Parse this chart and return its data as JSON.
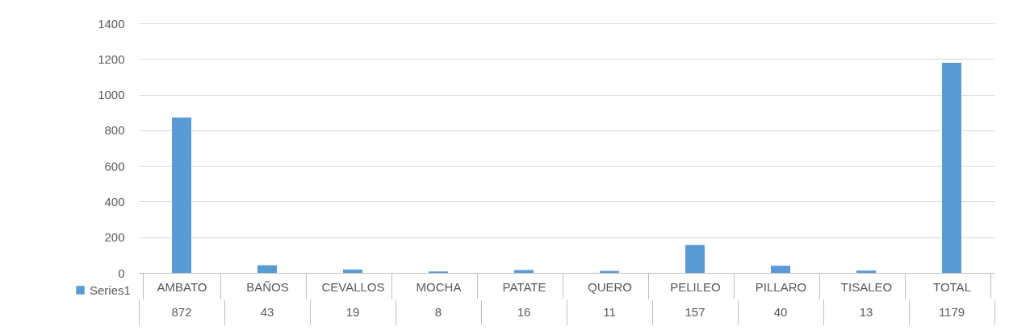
{
  "chart_data": {
    "type": "bar",
    "categories": [
      "AMBATO",
      "BAÑOS",
      "CEVALLOS",
      "MOCHA",
      "PATATE",
      "QUERO",
      "PELILEO",
      "PILLARO",
      "TISALEO",
      "TOTAL"
    ],
    "series": [
      {
        "name": "Series1",
        "color": "#5b9bd5",
        "values": [
          872,
          43,
          19,
          8,
          16,
          11,
          157,
          40,
          13,
          1179
        ]
      }
    ],
    "ylim": [
      0,
      1400
    ],
    "yticks": [
      0,
      200,
      400,
      600,
      800,
      1000,
      1200,
      1400
    ],
    "grid": "y",
    "data_labels": true,
    "legend": "bottom left"
  }
}
